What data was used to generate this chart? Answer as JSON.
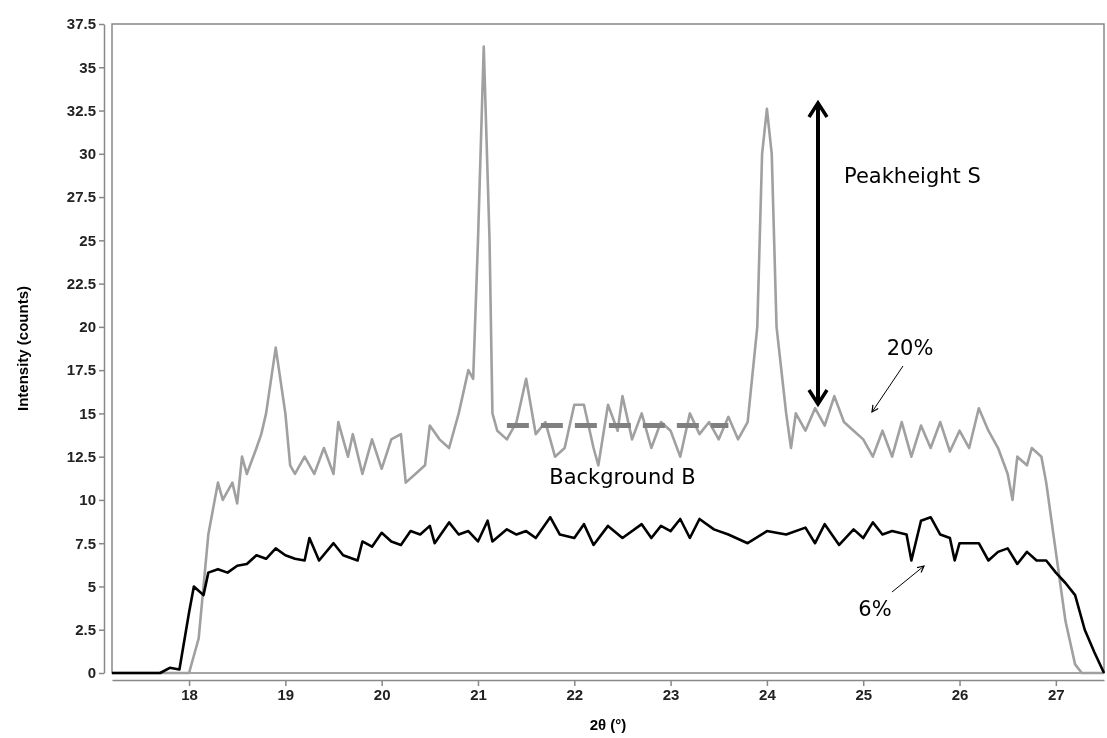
{
  "chart_data": {
    "type": "line",
    "xlabel": "2θ (°)",
    "ylabel": "Intensity (counts)",
    "xlim": [
      17.2,
      27.5
    ],
    "xticks": [
      18,
      19,
      20,
      21,
      22,
      23,
      24,
      25,
      26,
      27
    ],
    "ylim": [
      0,
      37.5
    ],
    "yticks": [
      0,
      2.5,
      5,
      7.5,
      10,
      12.5,
      15,
      17.5,
      20,
      22.5,
      25,
      27.5,
      30,
      32.5,
      35,
      37.5
    ],
    "grid": false,
    "marker": "none",
    "series": [
      {
        "name": "20%",
        "color": "#a0a0a0",
        "x": [
          17.2,
          18.0,
          18.1,
          18.2,
          18.3,
          18.35,
          18.45,
          18.5,
          18.55,
          18.6,
          18.7,
          18.75,
          18.8,
          18.9,
          19.0,
          19.05,
          19.1,
          19.2,
          19.3,
          19.4,
          19.5,
          19.55,
          19.65,
          19.7,
          19.8,
          19.9,
          20.0,
          20.1,
          20.2,
          20.25,
          20.35,
          20.45,
          20.5,
          20.6,
          20.7,
          20.8,
          20.9,
          20.95,
          21.0,
          21.06,
          21.12,
          21.15,
          21.2,
          21.3,
          21.4,
          21.5,
          21.6,
          21.7,
          21.8,
          21.9,
          22.0,
          22.1,
          22.2,
          22.25,
          22.35,
          22.45,
          22.5,
          22.6,
          22.7,
          22.8,
          22.9,
          23.0,
          23.1,
          23.2,
          23.3,
          23.4,
          23.5,
          23.6,
          23.7,
          23.8,
          23.9,
          23.95,
          24.0,
          24.05,
          24.1,
          24.2,
          24.25,
          24.3,
          24.4,
          24.5,
          24.6,
          24.7,
          24.8,
          24.9,
          25.0,
          25.1,
          25.2,
          25.3,
          25.4,
          25.5,
          25.6,
          25.7,
          25.8,
          25.9,
          26.0,
          26.1,
          26.2,
          26.3,
          26.4,
          26.5,
          26.55,
          26.6,
          26.7,
          26.75,
          26.85,
          26.9,
          26.95,
          27.0,
          27.05,
          27.1,
          27.2,
          27.27,
          27.5
        ],
        "values": [
          0,
          0,
          2,
          8,
          11,
          10,
          11,
          9.8,
          12.5,
          11.5,
          13,
          13.8,
          15,
          18.8,
          15,
          12,
          11.5,
          12.5,
          11.5,
          13,
          11.5,
          14.5,
          12.5,
          13.8,
          11.5,
          13.5,
          11.8,
          13.5,
          13.8,
          11,
          11.5,
          12,
          14.3,
          13.5,
          13,
          15,
          17.5,
          17,
          25,
          36.2,
          25,
          15,
          14,
          13.5,
          14.5,
          17,
          13.8,
          14.5,
          12.5,
          13,
          15.5,
          15.5,
          13,
          12,
          15.5,
          14,
          16,
          13.5,
          15,
          13,
          14.5,
          14,
          12.5,
          15,
          13.8,
          14.5,
          13.5,
          14.8,
          13.5,
          14.5,
          20,
          30,
          32.6,
          30,
          20,
          15,
          13,
          15,
          14,
          15.3,
          14.3,
          16,
          14.5,
          14,
          13.5,
          12.5,
          14,
          12.5,
          14.5,
          12.5,
          14.3,
          13,
          14.5,
          12.8,
          14,
          13,
          15.3,
          14,
          13,
          11.5,
          10,
          12.5,
          12,
          13,
          12.5,
          11,
          9,
          7,
          5,
          3,
          0.5,
          0,
          0
        ]
      },
      {
        "name": "6%",
        "color": "#000000",
        "x": [
          17.2,
          17.7,
          17.8,
          17.9,
          18.0,
          18.05,
          18.15,
          18.2,
          18.3,
          18.4,
          18.5,
          18.6,
          18.7,
          18.8,
          18.9,
          19.0,
          19.1,
          19.2,
          19.25,
          19.35,
          19.5,
          19.6,
          19.75,
          19.8,
          19.9,
          20.0,
          20.1,
          20.2,
          20.3,
          20.4,
          20.5,
          20.55,
          20.7,
          20.8,
          20.9,
          21.0,
          21.1,
          21.15,
          21.3,
          21.4,
          21.5,
          21.6,
          21.75,
          21.85,
          22.0,
          22.1,
          22.2,
          22.35,
          22.5,
          22.7,
          22.8,
          22.9,
          23.0,
          23.1,
          23.2,
          23.3,
          23.45,
          23.6,
          23.8,
          24.0,
          24.2,
          24.4,
          24.5,
          24.6,
          24.75,
          24.9,
          25.0,
          25.1,
          25.2,
          25.3,
          25.45,
          25.5,
          25.6,
          25.7,
          25.8,
          25.9,
          25.95,
          26.0,
          26.2,
          26.3,
          26.4,
          26.5,
          26.6,
          26.7,
          26.8,
          26.9,
          27.0,
          27.1,
          27.2,
          27.3,
          27.4,
          27.5
        ],
        "values": [
          0,
          0,
          0.3,
          0.2,
          3.5,
          5,
          4.5,
          5.8,
          6,
          5.8,
          6.2,
          6.3,
          6.8,
          6.6,
          7.2,
          6.8,
          6.6,
          6.5,
          7.8,
          6.5,
          7.5,
          6.8,
          6.5,
          7.6,
          7.3,
          8.1,
          7.6,
          7.4,
          8.2,
          8,
          8.5,
          7.5,
          8.7,
          8,
          8.2,
          7.6,
          8.8,
          7.6,
          8.3,
          8,
          8.2,
          7.8,
          9,
          8,
          7.8,
          8.6,
          7.4,
          8.5,
          7.8,
          8.6,
          7.8,
          8.5,
          8.2,
          8.9,
          7.8,
          8.9,
          8.3,
          8,
          7.5,
          8.2,
          8,
          8.4,
          7.5,
          8.6,
          7.4,
          8.3,
          7.8,
          8.7,
          8,
          8.2,
          8,
          6.5,
          8.8,
          9,
          8,
          7.8,
          6.5,
          7.5,
          7.5,
          6.5,
          7,
          7.2,
          6.3,
          7,
          6.5,
          6.5,
          5.8,
          5.2,
          4.5,
          2.5,
          1.2,
          0
        ]
      },
      {
        "color": "#808080",
        "line_style": "dashed",
        "x": [
          21.3,
          23.6
        ],
        "values": [
          14.3,
          14.3
        ]
      }
    ],
    "annotations": [
      "Peakheight S",
      {
        "text": "Background B",
        "x": 22.5,
        "y": 14.3
      }
    ]
  }
}
